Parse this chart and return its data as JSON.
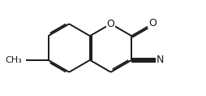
{
  "bg_color": "#ffffff",
  "bond_color": "#1a1a1a",
  "bond_lw": 1.4,
  "dbo": 0.018,
  "figsize": [
    2.54,
    1.18
  ],
  "dpi": 100,
  "xlim": [
    0,
    2.54
  ],
  "ylim": [
    0,
    1.18
  ]
}
